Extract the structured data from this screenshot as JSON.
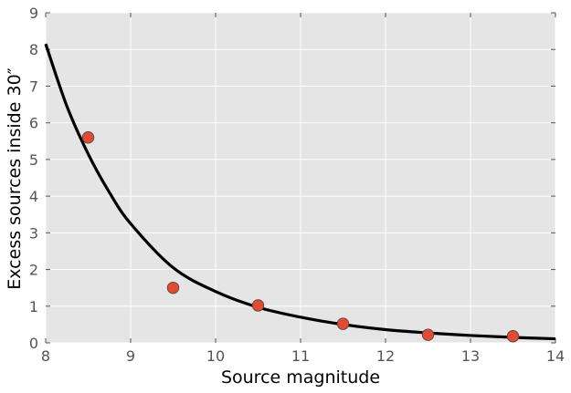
{
  "chart_data": {
    "type": "scatter",
    "xlabel": "Source magnitude",
    "ylabel": "Excess sources inside 30″",
    "xlim": [
      8,
      14
    ],
    "ylim": [
      0,
      9
    ],
    "xticks": [
      "8",
      "9",
      "10",
      "11",
      "12",
      "13",
      "14"
    ],
    "yticks": [
      "0",
      "1",
      "2",
      "3",
      "4",
      "5",
      "6",
      "7",
      "8",
      "9"
    ],
    "grid": true,
    "background": "#e5e5e5",
    "series": [
      {
        "kind": "scatter",
        "color": "#e24a33",
        "x": [
          8.5,
          9.5,
          10.5,
          11.5,
          12.5,
          13.5
        ],
        "y": [
          5.6,
          1.5,
          1.02,
          0.52,
          0.22,
          0.18
        ]
      },
      {
        "kind": "line",
        "color": "#000000",
        "x": [
          8,
          8.25,
          8.5,
          8.75,
          9,
          9.5,
          10,
          10.5,
          11,
          11.5,
          12,
          12.5,
          13,
          13.5,
          14
        ],
        "y": [
          8.15,
          6.45,
          5.15,
          4.1,
          3.25,
          2.05,
          1.4,
          0.97,
          0.7,
          0.5,
          0.36,
          0.27,
          0.2,
          0.15,
          0.11
        ]
      }
    ]
  }
}
